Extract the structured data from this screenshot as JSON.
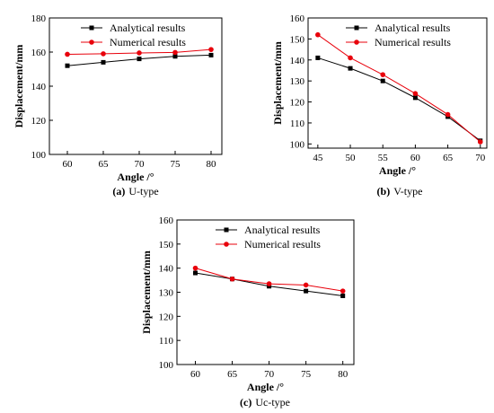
{
  "colors": {
    "analytical": "#000000",
    "numerical": "#e8000b",
    "frame": "#000000"
  },
  "legend_labels": [
    "Analytical results",
    "Numerical results"
  ],
  "chart_data": [
    {
      "type": "line",
      "caption_letter": "(a)",
      "caption_text": "U-type",
      "xlabel": "Angle /°",
      "ylabel": "Displacement/mm",
      "xlim": [
        57.5,
        81.5
      ],
      "ylim": [
        100,
        180
      ],
      "x": [
        60,
        65,
        70,
        75,
        80
      ],
      "xticks": [
        60,
        65,
        70,
        75,
        80
      ],
      "yticks": [
        100,
        120,
        140,
        160,
        180
      ],
      "legend_position": "top-center",
      "series": [
        {
          "name": "Analytical results",
          "values": [
            152,
            154,
            156,
            157.5,
            158.2
          ]
        },
        {
          "name": "Numerical results",
          "values": [
            158.7,
            159,
            159.5,
            159.8,
            161.5
          ]
        }
      ]
    },
    {
      "type": "line",
      "caption_letter": "(b)",
      "caption_text": "V-type",
      "xlabel": "Angle /°",
      "ylabel": "Displacement/mm",
      "xlim": [
        43.5,
        71
      ],
      "ylim": [
        98,
        160
      ],
      "x": [
        45,
        50,
        55,
        60,
        65,
        70
      ],
      "xticks": [
        45,
        50,
        55,
        60,
        65,
        70
      ],
      "yticks": [
        100,
        110,
        120,
        130,
        140,
        150,
        160
      ],
      "legend_position": "top-right",
      "series": [
        {
          "name": "Analytical results",
          "values": [
            141,
            136,
            130,
            122,
            113,
            101.5
          ]
        },
        {
          "name": "Numerical results",
          "values": [
            152,
            141,
            133,
            124,
            114,
            101
          ]
        }
      ]
    },
    {
      "type": "line",
      "caption_letter": "(c)",
      "caption_text": "Uc-type",
      "xlabel": "Angle /°",
      "ylabel": "Displacement/mm",
      "xlim": [
        57.5,
        81.5
      ],
      "ylim": [
        100,
        160
      ],
      "x": [
        60,
        65,
        70,
        75,
        80
      ],
      "xticks": [
        60,
        65,
        70,
        75,
        80
      ],
      "yticks": [
        100,
        110,
        120,
        130,
        140,
        150,
        160
      ],
      "legend_position": "top-center",
      "series": [
        {
          "name": "Analytical results",
          "values": [
            138,
            135.5,
            132.5,
            130.5,
            128.5
          ]
        },
        {
          "name": "Numerical results",
          "values": [
            140,
            135.5,
            133.5,
            133,
            130.5
          ]
        }
      ]
    }
  ]
}
